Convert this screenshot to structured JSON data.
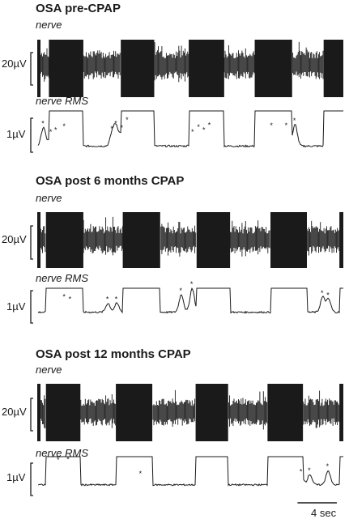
{
  "chart_data": [
    {
      "type": "line",
      "title": "OSA pre-CPAP",
      "trace_labels": [
        "nerve",
        "nerve RMS"
      ],
      "scale_labels": [
        "20µV",
        "1µV"
      ],
      "colors": {
        "trace": "#1a1a1a"
      },
      "burst_windows_s": [
        [
          1.1,
          4.6
        ],
        [
          8.4,
          11.8
        ],
        [
          15.3,
          18.9
        ],
        [
          22.0,
          25.8
        ],
        [
          29.0,
          31.0
        ]
      ],
      "rms_peaks": [
        {
          "t": 0.55,
          "value": 0.6
        },
        {
          "t": 1.35,
          "value": 0.36
        },
        {
          "t": 1.85,
          "value": 0.42
        },
        {
          "t": 2.7,
          "value": 0.52
        },
        {
          "t": 7.55,
          "value": 0.46
        },
        {
          "t": 7.95,
          "value": 0.6
        },
        {
          "t": 8.55,
          "value": 0.48
        },
        {
          "t": 9.1,
          "value": 0.7
        },
        {
          "t": 15.75,
          "value": 0.36
        },
        {
          "t": 16.35,
          "value": 0.5
        },
        {
          "t": 16.9,
          "value": 0.42
        },
        {
          "t": 17.45,
          "value": 0.56
        },
        {
          "t": 23.75,
          "value": 0.55
        },
        {
          "t": 25.25,
          "value": 0.55
        },
        {
          "t": 26.1,
          "value": 0.68
        }
      ]
    },
    {
      "type": "line",
      "title": "OSA post 6 months CPAP",
      "trace_labels": [
        "nerve",
        "nerve RMS"
      ],
      "scale_labels": [
        "20µV",
        "1µV"
      ],
      "colors": {
        "trace": "#1a1a1a"
      },
      "burst_windows_s": [
        [
          0.8,
          4.6
        ],
        [
          8.6,
          12.4
        ],
        [
          16.1,
          19.5
        ],
        [
          23.6,
          27.3
        ],
        [
          30.6,
          31.0
        ]
      ],
      "rms_peaks": [
        {
          "t": 2.7,
          "value": 0.42
        },
        {
          "t": 3.3,
          "value": 0.34
        },
        {
          "t": 7.1,
          "value": 0.34
        },
        {
          "t": 8.0,
          "value": 0.34
        },
        {
          "t": 14.55,
          "value": 0.6
        },
        {
          "t": 15.65,
          "value": 0.78
        },
        {
          "t": 28.9,
          "value": 0.52
        },
        {
          "t": 29.5,
          "value": 0.46
        }
      ]
    },
    {
      "type": "line",
      "title": "OSA post 12 months CPAP",
      "trace_labels": [
        "nerve",
        "nerve RMS"
      ],
      "scale_labels": [
        "20µV",
        "1µV"
      ],
      "colors": {
        "trace": "#1a1a1a"
      },
      "burst_windows_s": [
        [
          0.8,
          4.3
        ],
        [
          7.9,
          11.6
        ],
        [
          16.0,
          19.3
        ],
        [
          23.3,
          26.9
        ],
        [
          30.6,
          31.0
        ]
      ],
      "time_scale_bar": {
        "value": 4,
        "label": "4 sec"
      },
      "rms_peaks": [
        {
          "t": 2.1,
          "value": 0.72
        },
        {
          "t": 3.1,
          "value": 0.74
        },
        {
          "t": 10.45,
          "value": 0.3
        },
        {
          "t": 26.75,
          "value": 0.36
        },
        {
          "t": 27.6,
          "value": 0.4
        },
        {
          "t": 29.45,
          "value": 0.52
        }
      ]
    }
  ]
}
